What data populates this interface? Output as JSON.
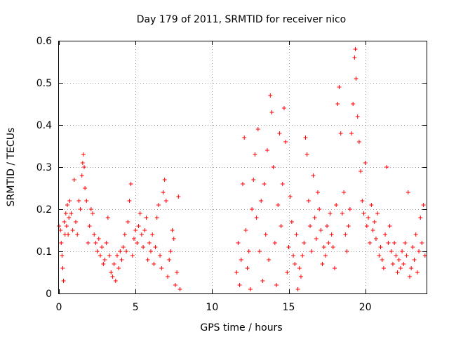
{
  "chart_data": {
    "type": "scatter",
    "title": "Day 179 of 2011, SRMTID for receiver nico",
    "xlabel": "GPS time / hours",
    "ylabel": "SRMTID / TECUs",
    "xlim": [
      0,
      24
    ],
    "ylim": [
      0,
      0.6
    ],
    "xticks": [
      0,
      5,
      10,
      15,
      20
    ],
    "yticks": [
      0,
      0.1,
      0.2,
      0.3,
      0.4,
      0.5,
      0.6
    ],
    "xtick_labels": [
      "0",
      "5",
      "10",
      "15",
      "20"
    ],
    "ytick_labels": [
      "0",
      "0.1",
      "0.2",
      "0.3",
      "0.4",
      "0.5",
      "0.6"
    ],
    "grid": true,
    "marker": "plus",
    "color": "#ff0000",
    "series": [
      {
        "name": "SRMTID",
        "points": [
          [
            0.0,
            0.16
          ],
          [
            0.1,
            0.15
          ],
          [
            0.15,
            0.12
          ],
          [
            0.2,
            0.09
          ],
          [
            0.25,
            0.06
          ],
          [
            0.3,
            0.03
          ],
          [
            0.35,
            0.17
          ],
          [
            0.4,
            0.14
          ],
          [
            0.45,
            0.19
          ],
          [
            0.5,
            0.16
          ],
          [
            0.55,
            0.21
          ],
          [
            0.6,
            0.14
          ],
          [
            0.65,
            0.18
          ],
          [
            0.7,
            0.22
          ],
          [
            0.8,
            0.19
          ],
          [
            0.9,
            0.15
          ],
          [
            1.0,
            0.27
          ],
          [
            1.1,
            0.17
          ],
          [
            1.2,
            0.14
          ],
          [
            1.3,
            0.22
          ],
          [
            1.4,
            0.2
          ],
          [
            1.5,
            0.28
          ],
          [
            1.55,
            0.31
          ],
          [
            1.6,
            0.33
          ],
          [
            1.65,
            0.3
          ],
          [
            1.7,
            0.25
          ],
          [
            1.8,
            0.22
          ],
          [
            1.9,
            0.12
          ],
          [
            2.0,
            0.16
          ],
          [
            2.1,
            0.2
          ],
          [
            2.2,
            0.19
          ],
          [
            2.3,
            0.14
          ],
          [
            2.4,
            0.12
          ],
          [
            2.5,
            0.1
          ],
          [
            2.6,
            0.13
          ],
          [
            2.7,
            0.09
          ],
          [
            2.8,
            0.11
          ],
          [
            2.9,
            0.07
          ],
          [
            3.0,
            0.08
          ],
          [
            3.1,
            0.12
          ],
          [
            3.2,
            0.18
          ],
          [
            3.3,
            0.09
          ],
          [
            3.4,
            0.05
          ],
          [
            3.5,
            0.04
          ],
          [
            3.6,
            0.07
          ],
          [
            3.7,
            0.03
          ],
          [
            3.8,
            0.09
          ],
          [
            3.9,
            0.06
          ],
          [
            4.0,
            0.1
          ],
          [
            4.1,
            0.08
          ],
          [
            4.2,
            0.11
          ],
          [
            4.3,
            0.14
          ],
          [
            4.4,
            0.1
          ],
          [
            4.5,
            0.17
          ],
          [
            4.6,
            0.22
          ],
          [
            4.7,
            0.26
          ],
          [
            4.8,
            0.09
          ],
          [
            4.9,
            0.13
          ],
          [
            5.0,
            0.15
          ],
          [
            5.1,
            0.12
          ],
          [
            5.2,
            0.16
          ],
          [
            5.3,
            0.19
          ],
          [
            5.4,
            0.14
          ],
          [
            5.5,
            0.11
          ],
          [
            5.6,
            0.15
          ],
          [
            5.7,
            0.18
          ],
          [
            5.8,
            0.08
          ],
          [
            5.9,
            0.12
          ],
          [
            6.0,
            0.1
          ],
          [
            6.1,
            0.14
          ],
          [
            6.2,
            0.07
          ],
          [
            6.3,
            0.11
          ],
          [
            6.4,
            0.18
          ],
          [
            6.5,
            0.21
          ],
          [
            6.6,
            0.09
          ],
          [
            6.7,
            0.06
          ],
          [
            6.8,
            0.24
          ],
          [
            6.9,
            0.27
          ],
          [
            7.0,
            0.22
          ],
          [
            7.1,
            0.04
          ],
          [
            7.2,
            0.08
          ],
          [
            7.3,
            0.1
          ],
          [
            7.4,
            0.15
          ],
          [
            7.5,
            0.13
          ],
          [
            7.6,
            0.02
          ],
          [
            7.7,
            0.05
          ],
          [
            7.8,
            0.23
          ],
          [
            7.9,
            0.01
          ],
          [
            11.6,
            0.05
          ],
          [
            11.7,
            0.12
          ],
          [
            11.8,
            0.02
          ],
          [
            11.9,
            0.08
          ],
          [
            12.0,
            0.26
          ],
          [
            12.1,
            0.37
          ],
          [
            12.2,
            0.15
          ],
          [
            12.3,
            0.06
          ],
          [
            12.4,
            0.1
          ],
          [
            12.5,
            0.01
          ],
          [
            12.6,
            0.2
          ],
          [
            12.7,
            0.27
          ],
          [
            12.8,
            0.33
          ],
          [
            12.9,
            0.18
          ],
          [
            13.0,
            0.39
          ],
          [
            13.1,
            0.1
          ],
          [
            13.2,
            0.22
          ],
          [
            13.3,
            0.03
          ],
          [
            13.4,
            0.26
          ],
          [
            13.5,
            0.14
          ],
          [
            13.6,
            0.34
          ],
          [
            13.7,
            0.08
          ],
          [
            13.8,
            0.47
          ],
          [
            13.9,
            0.43
          ],
          [
            14.0,
            0.3
          ],
          [
            14.1,
            0.12
          ],
          [
            14.2,
            0.02
          ],
          [
            14.3,
            0.21
          ],
          [
            14.4,
            0.38
          ],
          [
            14.5,
            0.16
          ],
          [
            14.6,
            0.26
          ],
          [
            14.7,
            0.44
          ],
          [
            14.8,
            0.36
          ],
          [
            14.9,
            0.05
          ],
          [
            15.0,
            0.11
          ],
          [
            15.1,
            0.23
          ],
          [
            15.2,
            0.17
          ],
          [
            15.3,
            0.09
          ],
          [
            15.4,
            0.07
          ],
          [
            15.5,
            0.14
          ],
          [
            15.6,
            0.01
          ],
          [
            15.7,
            0.06
          ],
          [
            15.8,
            0.04
          ],
          [
            15.9,
            0.09
          ],
          [
            16.0,
            0.12
          ],
          [
            16.1,
            0.37
          ],
          [
            16.2,
            0.33
          ],
          [
            16.3,
            0.22
          ],
          [
            16.4,
            0.16
          ],
          [
            16.5,
            0.1
          ],
          [
            16.6,
            0.28
          ],
          [
            16.7,
            0.18
          ],
          [
            16.8,
            0.13
          ],
          [
            16.9,
            0.24
          ],
          [
            17.0,
            0.2
          ],
          [
            17.1,
            0.15
          ],
          [
            17.2,
            0.07
          ],
          [
            17.3,
            0.11
          ],
          [
            17.4,
            0.09
          ],
          [
            17.5,
            0.16
          ],
          [
            17.6,
            0.12
          ],
          [
            17.7,
            0.19
          ],
          [
            17.8,
            0.14
          ],
          [
            17.9,
            0.11
          ],
          [
            18.0,
            0.06
          ],
          [
            18.1,
            0.21
          ],
          [
            18.2,
            0.45
          ],
          [
            18.3,
            0.49
          ],
          [
            18.4,
            0.38
          ],
          [
            18.5,
            0.19
          ],
          [
            18.6,
            0.24
          ],
          [
            18.7,
            0.14
          ],
          [
            18.8,
            0.1
          ],
          [
            18.9,
            0.16
          ],
          [
            19.0,
            0.2
          ],
          [
            19.1,
            0.38
          ],
          [
            19.2,
            0.45
          ],
          [
            19.3,
            0.56
          ],
          [
            19.35,
            0.58
          ],
          [
            19.4,
            0.51
          ],
          [
            19.5,
            0.42
          ],
          [
            19.6,
            0.36
          ],
          [
            19.7,
            0.29
          ],
          [
            19.8,
            0.22
          ],
          [
            19.9,
            0.19
          ],
          [
            20.0,
            0.31
          ],
          [
            20.1,
            0.16
          ],
          [
            20.2,
            0.18
          ],
          [
            20.3,
            0.12
          ],
          [
            20.4,
            0.21
          ],
          [
            20.5,
            0.15
          ],
          [
            20.6,
            0.17
          ],
          [
            20.7,
            0.13
          ],
          [
            20.8,
            0.19
          ],
          [
            20.9,
            0.09
          ],
          [
            21.0,
            0.11
          ],
          [
            21.1,
            0.08
          ],
          [
            21.2,
            0.06
          ],
          [
            21.3,
            0.14
          ],
          [
            21.4,
            0.3
          ],
          [
            21.5,
            0.12
          ],
          [
            21.6,
            0.16
          ],
          [
            21.7,
            0.1
          ],
          [
            21.8,
            0.07
          ],
          [
            21.9,
            0.12
          ],
          [
            22.0,
            0.09
          ],
          [
            22.1,
            0.05
          ],
          [
            22.2,
            0.08
          ],
          [
            22.3,
            0.06
          ],
          [
            22.4,
            0.1
          ],
          [
            22.5,
            0.07
          ],
          [
            22.6,
            0.12
          ],
          [
            22.7,
            0.09
          ],
          [
            22.8,
            0.24
          ],
          [
            22.9,
            0.04
          ],
          [
            23.0,
            0.06
          ],
          [
            23.1,
            0.11
          ],
          [
            23.2,
            0.08
          ],
          [
            23.3,
            0.14
          ],
          [
            23.4,
            0.05
          ],
          [
            23.5,
            0.1
          ],
          [
            23.6,
            0.18
          ],
          [
            23.7,
            0.12
          ],
          [
            23.8,
            0.21
          ],
          [
            23.9,
            0.09
          ]
        ]
      }
    ]
  }
}
